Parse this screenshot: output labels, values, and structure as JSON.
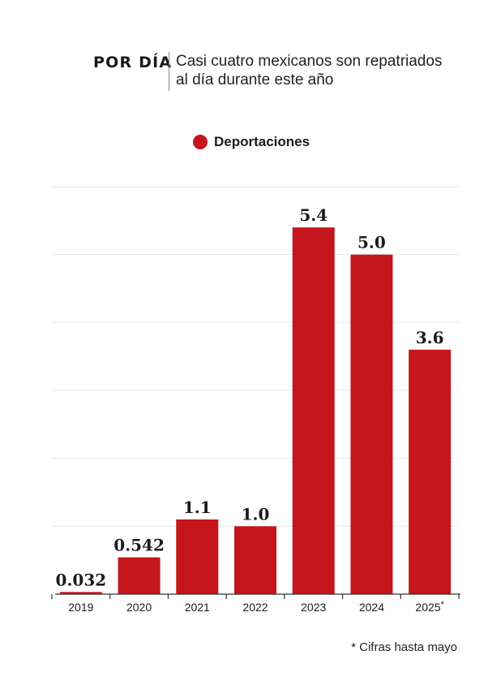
{
  "header": {
    "kicker": "POR DÍA",
    "title": "Casi cuatro mexicanos son repatriados al día durante este año"
  },
  "legend": {
    "label": "Deportaciones",
    "color": "#c4161c"
  },
  "chart_data": {
    "type": "bar",
    "categories": [
      "2019",
      "2020",
      "2021",
      "2022",
      "2023",
      "2024",
      "2025"
    ],
    "category_superscripts": [
      "",
      "",
      "",
      "",
      "",
      "",
      "*"
    ],
    "series": [
      {
        "name": "Deportaciones",
        "values": [
          0.032,
          0.542,
          1.1,
          1.0,
          5.4,
          5.0,
          3.6
        ],
        "data_labels": [
          "0.032",
          "0.542",
          "1.1",
          "1.0",
          "5.4",
          "5.0",
          "3.6"
        ]
      }
    ],
    "ylim": [
      0,
      6
    ],
    "grid": true,
    "legend_position": "top-center",
    "bar_color": "#c4161c"
  },
  "footnote": "* Cifras hasta mayo"
}
